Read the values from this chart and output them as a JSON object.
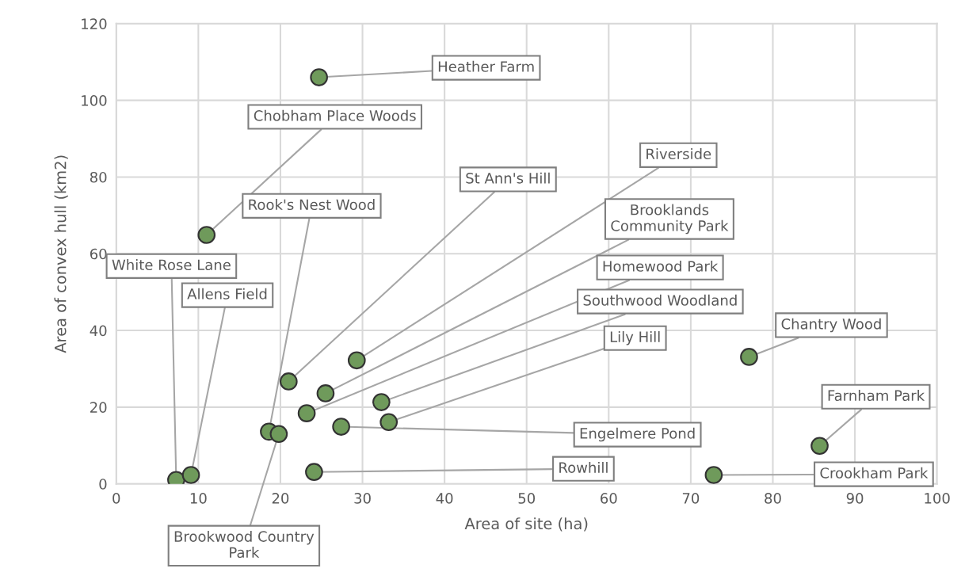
{
  "chart_data": {
    "type": "scatter",
    "xlabel": "Area of site (ha)",
    "ylabel": "Area of convex hull (km2)",
    "x": [
      24.7,
      11.0,
      7.3,
      9.1,
      18.6,
      19.8,
      21.0,
      29.3,
      25.5,
      23.2,
      32.3,
      33.2,
      77.1,
      85.7,
      27.4,
      24.1,
      72.8
    ],
    "series": [
      {
        "color": "#6f9a5b",
        "values": [
          106,
          64.9,
          1.0,
          2.3,
          13.6,
          13.0,
          26.7,
          32.2,
          23.6,
          18.4,
          21.3,
          16.1,
          33.1,
          9.9,
          14.9,
          3.1,
          2.3
        ]
      }
    ],
    "xlim": [
      0,
      100
    ],
    "xticks": [
      0,
      10,
      20,
      30,
      40,
      50,
      60,
      70,
      80,
      90,
      100
    ],
    "ylim": [
      0,
      120
    ],
    "yticks": [
      0,
      20,
      40,
      60,
      80,
      100,
      120
    ],
    "grid": true,
    "marker": "circle",
    "annotations": [
      {
        "text": "Heather Farm",
        "x": 24.7,
        "y": 106
      },
      {
        "text": "Chobham Place Woods",
        "x": 11.0,
        "y": 64.9
      },
      {
        "text": "White Rose Lane",
        "x": 7.3,
        "y": 1.0
      },
      {
        "text": "Allens Field",
        "x": 9.1,
        "y": 2.3
      },
      {
        "text": "Rook's Nest Wood",
        "x": 18.6,
        "y": 13.6
      },
      {
        "text": "Brookwood Country\nPark",
        "x": 19.8,
        "y": 13.0
      },
      {
        "text": "St Ann's Hill",
        "x": 21.0,
        "y": 26.7
      },
      {
        "text": "Riverside",
        "x": 29.3,
        "y": 32.2
      },
      {
        "text": "Brooklands\nCommunity Park",
        "x": 25.5,
        "y": 23.6
      },
      {
        "text": "Homewood Park",
        "x": 23.2,
        "y": 18.4
      },
      {
        "text": "Southwood Woodland",
        "x": 32.3,
        "y": 21.3
      },
      {
        "text": "Lily Hill",
        "x": 33.2,
        "y": 16.1
      },
      {
        "text": "Chantry Wood",
        "x": 77.1,
        "y": 33.1
      },
      {
        "text": "Farnham Park",
        "x": 85.7,
        "y": 9.9
      },
      {
        "text": "Engelmere Pond",
        "x": 27.4,
        "y": 14.9
      },
      {
        "text": "Rowhill",
        "x": 24.1,
        "y": 3.1
      },
      {
        "text": "Crookham Park",
        "x": 72.8,
        "y": 2.3
      }
    ]
  }
}
